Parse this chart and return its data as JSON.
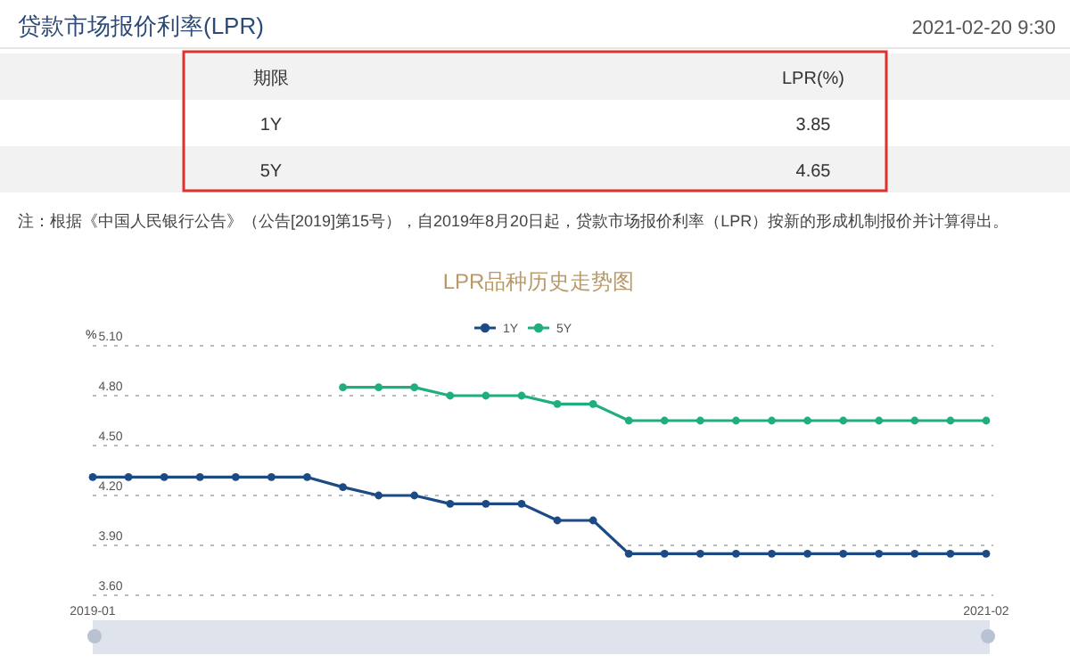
{
  "chart_data": [
    {
      "type": "other",
      "title": "贷款市场报价利率(LPR)",
      "subtitle": "2021-02-20 9:30",
      "annotations": [
        "期限",
        "LPR(%)",
        "1Y",
        "3.85",
        "5Y",
        "4.65",
        "注：根据《中国人民银行公告》（公告[2019]第15号），自2019年8月20日起，贷款市场报价利率（LPR）按新的形成机制报价并计算得出。"
      ]
    },
    {
      "type": "line",
      "title": "LPR品种历史走势图",
      "ylabel": "%",
      "categories": [
        "2019-01",
        null,
        null,
        null,
        null,
        null,
        null,
        null,
        null,
        null,
        null,
        null,
        null,
        null,
        null,
        null,
        null,
        null,
        null,
        null,
        null,
        null,
        null,
        null,
        null,
        "2021-02"
      ],
      "series": [
        {
          "name": "1Y",
          "color": "#1b4a85",
          "values": [
            4.31,
            4.31,
            4.31,
            4.31,
            4.31,
            4.31,
            4.31,
            4.25,
            4.2,
            4.2,
            4.15,
            4.15,
            4.15,
            4.05,
            4.05,
            3.85,
            3.85,
            3.85,
            3.85,
            3.85,
            3.85,
            3.85,
            3.85,
            3.85,
            3.85,
            3.85
          ]
        },
        {
          "name": "5Y",
          "color": "#1fae7e",
          "values": [
            null,
            null,
            null,
            null,
            null,
            null,
            null,
            4.85,
            4.85,
            4.85,
            4.8,
            4.8,
            4.8,
            4.75,
            4.75,
            4.65,
            4.65,
            4.65,
            4.65,
            4.65,
            4.65,
            4.65,
            4.65,
            4.65,
            4.65,
            4.65
          ]
        }
      ],
      "ylim": [
        3.6,
        5.1
      ],
      "yticks": [
        {
          "value": 3.6,
          "label": "3.60"
        },
        {
          "value": 3.9,
          "label": "3.90"
        },
        {
          "value": 4.2,
          "label": "4.20"
        },
        {
          "value": 4.5,
          "label": "4.50"
        },
        {
          "value": 4.8,
          "label": "4.80"
        },
        {
          "value": 5.1,
          "label": "5.10"
        }
      ],
      "grid": "y",
      "legend": "top",
      "marker": "circle"
    }
  ]
}
